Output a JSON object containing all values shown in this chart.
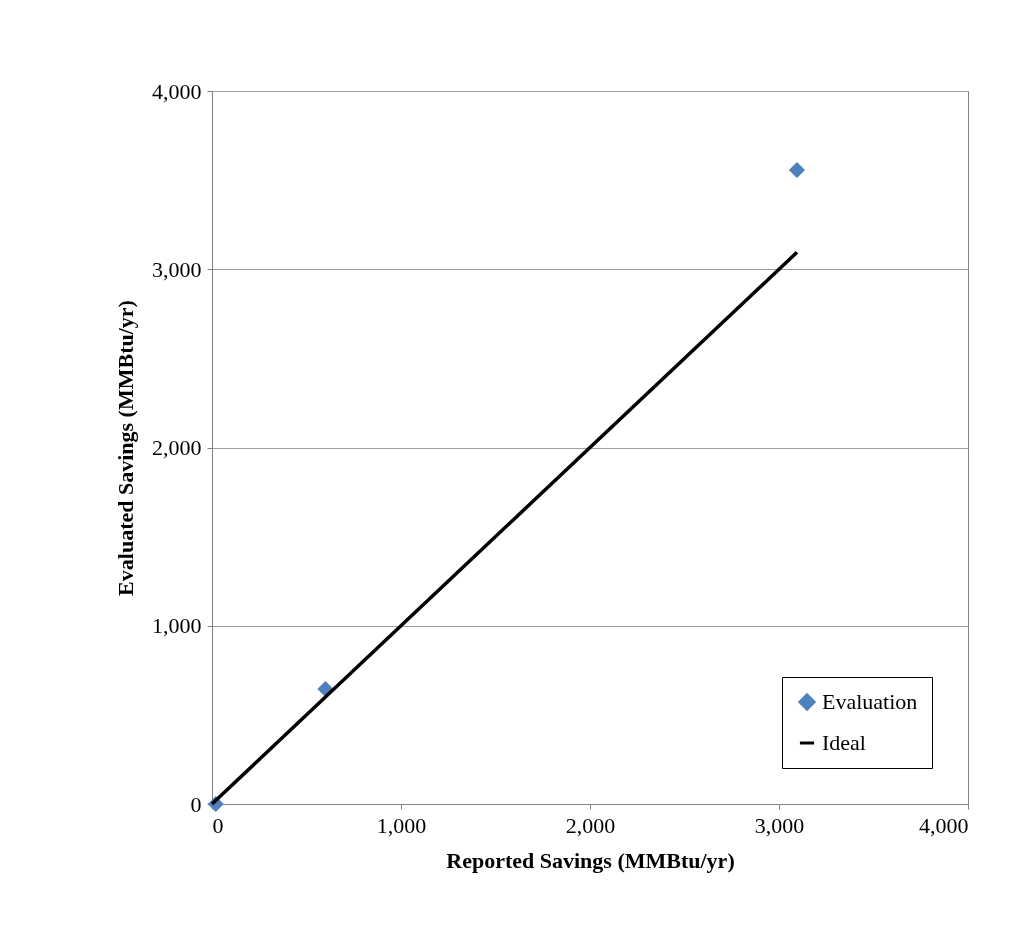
{
  "chart_data": {
    "type": "scatter",
    "xlabel": "Reported Savings (MMBtu/yr)",
    "ylabel": "Evaluated Savings (MMBtu/yr)",
    "series": [
      {
        "name": "Evaluation",
        "type": "scatter",
        "color": "#4f81bd",
        "marker": "diamond",
        "x": [
          20,
          600,
          3095
        ],
        "values": [
          0,
          645,
          3557
        ]
      },
      {
        "name": "Ideal",
        "type": "line",
        "color": "#000000",
        "line_style": "solid",
        "x": [
          0,
          3095
        ],
        "values": [
          0,
          3095
        ]
      }
    ],
    "xlim": [
      0,
      4000
    ],
    "xticks": [
      0,
      {
        "value": 1000,
        "label": "1,000"
      },
      {
        "value": 2000,
        "label": "2,000"
      },
      {
        "value": 3000,
        "label": "3,000"
      },
      {
        "value": 4000,
        "label": "4,000"
      }
    ],
    "ylim": [
      0,
      4000
    ],
    "yticks": [
      0,
      {
        "value": 1000,
        "label": "1,000"
      },
      {
        "value": 2000,
        "label": "2,000"
      },
      {
        "value": 3000,
        "label": "3,000"
      },
      {
        "value": 4000,
        "label": "4,000"
      }
    ],
    "grid": "y",
    "legend": "bottom right"
  }
}
